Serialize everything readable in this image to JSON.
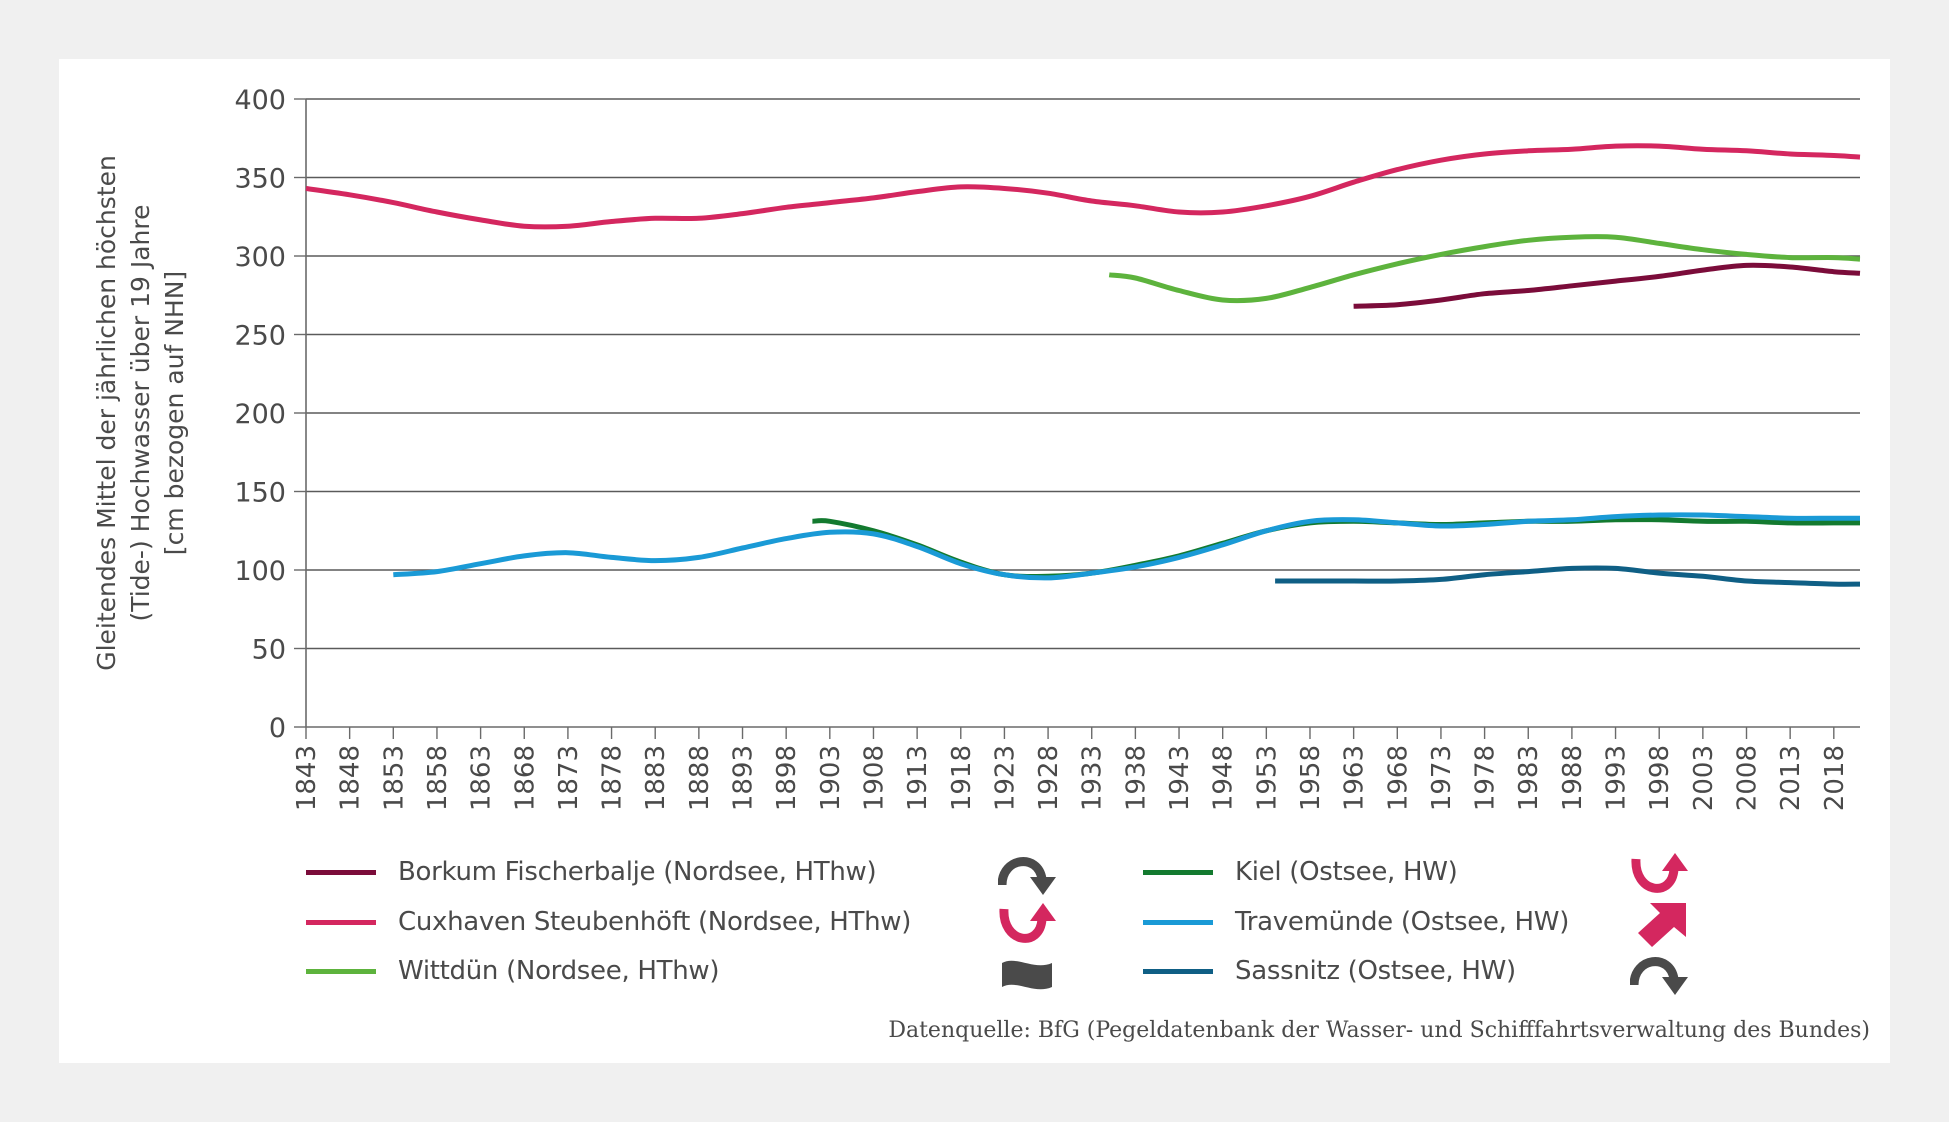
{
  "chart_data": {
    "type": "line",
    "title": "",
    "xlabel": "",
    "ylabel_lines": [
      "Gleitendes Mittel der jährlichen höchsten",
      "(Tide-) Hochwasser über 19 Jahre",
      "[cm bezogen auf NHN]"
    ],
    "xlim": [
      1843,
      2021
    ],
    "ylim": [
      0,
      400
    ],
    "yticks": [
      0,
      50,
      100,
      150,
      200,
      250,
      300,
      350,
      400
    ],
    "xticks": [
      1843,
      1848,
      1853,
      1858,
      1863,
      1868,
      1873,
      1878,
      1883,
      1888,
      1893,
      1898,
      1903,
      1908,
      1913,
      1918,
      1923,
      1928,
      1933,
      1938,
      1943,
      1948,
      1953,
      1958,
      1963,
      1968,
      1973,
      1978,
      1983,
      1988,
      1993,
      1998,
      2003,
      2008,
      2013,
      2018
    ],
    "grid": "horizontal",
    "legend_position": "bottom",
    "series": [
      {
        "name": "Borkum Fischerbalje (Nordsee, HThw)",
        "color": "#7b0c3a",
        "trend_icon": "curve-down-arrow-icon",
        "trend_color": "#4a4a4a",
        "x": [
          1963,
          1968,
          1973,
          1978,
          1983,
          1988,
          1993,
          1998,
          2003,
          2008,
          2013,
          2018,
          2021
        ],
        "y": [
          268,
          269,
          272,
          276,
          278,
          281,
          284,
          287,
          291,
          294,
          293,
          290,
          289
        ]
      },
      {
        "name": "Cuxhaven Steubenhöft (Nordsee, HThw)",
        "color": "#d4275f",
        "trend_icon": "curve-up-arrow-icon",
        "trend_color": "#d4275f",
        "x": [
          1843,
          1848,
          1853,
          1858,
          1863,
          1868,
          1873,
          1878,
          1883,
          1888,
          1893,
          1898,
          1903,
          1908,
          1913,
          1918,
          1923,
          1928,
          1933,
          1938,
          1943,
          1948,
          1953,
          1958,
          1963,
          1968,
          1973,
          1978,
          1983,
          1988,
          1993,
          1998,
          2003,
          2008,
          2013,
          2018,
          2021
        ],
        "y": [
          343,
          339,
          334,
          328,
          323,
          319,
          319,
          322,
          324,
          324,
          327,
          331,
          334,
          337,
          341,
          344,
          343,
          340,
          335,
          332,
          328,
          328,
          332,
          338,
          347,
          355,
          361,
          365,
          367,
          368,
          370,
          370,
          368,
          367,
          365,
          364,
          363
        ]
      },
      {
        "name": "Wittdün (Nordsee, HThw)",
        "color": "#5db33d",
        "trend_icon": "wave-no-trend-icon",
        "trend_color": "#4a4a4a",
        "x": [
          1935,
          1938,
          1943,
          1948,
          1953,
          1958,
          1963,
          1968,
          1973,
          1978,
          1983,
          1988,
          1993,
          1998,
          2003,
          2008,
          2013,
          2018,
          2021
        ],
        "y": [
          288,
          286,
          278,
          272,
          273,
          280,
          288,
          295,
          301,
          306,
          310,
          312,
          312,
          308,
          304,
          301,
          299,
          299,
          298
        ]
      },
      {
        "name": "Kiel (Ostsee, HW)",
        "color": "#137a2f",
        "trend_icon": "curve-up-arrow-icon",
        "trend_color": "#d4275f",
        "x": [
          1901,
          1903,
          1908,
          1913,
          1918,
          1923,
          1928,
          1933,
          1938,
          1943,
          1948,
          1953,
          1958,
          1963,
          1968,
          1973,
          1978,
          1983,
          1988,
          1993,
          1998,
          2003,
          2008,
          2013,
          2018,
          2021
        ],
        "y": [
          131,
          131,
          125,
          116,
          105,
          97,
          96,
          98,
          103,
          109,
          117,
          125,
          130,
          131,
          130,
          129,
          130,
          131,
          131,
          132,
          132,
          131,
          131,
          130,
          130,
          130
        ]
      },
      {
        "name": "Travemünde (Ostsee, HW)",
        "color": "#1a9ad6",
        "trend_icon": "diagonal-up-arrow-icon",
        "trend_color": "#d4275f",
        "x": [
          1853,
          1858,
          1863,
          1868,
          1873,
          1878,
          1883,
          1888,
          1893,
          1898,
          1903,
          1908,
          1913,
          1918,
          1923,
          1928,
          1933,
          1938,
          1943,
          1948,
          1953,
          1958,
          1963,
          1968,
          1973,
          1978,
          1983,
          1988,
          1993,
          1998,
          2003,
          2008,
          2013,
          2018,
          2021
        ],
        "y": [
          97,
          99,
          104,
          109,
          111,
          108,
          106,
          108,
          114,
          120,
          124,
          123,
          115,
          104,
          97,
          95,
          98,
          102,
          108,
          116,
          125,
          131,
          132,
          130,
          128,
          129,
          131,
          132,
          134,
          135,
          135,
          134,
          133,
          133,
          133
        ]
      },
      {
        "name": "Sassnitz (Ostsee, HW)",
        "color": "#0f5f85",
        "trend_icon": "curve-down-arrow-icon",
        "trend_color": "#4a4a4a",
        "x": [
          1954,
          1958,
          1963,
          1968,
          1973,
          1978,
          1983,
          1988,
          1993,
          1998,
          2003,
          2008,
          2013,
          2018,
          2021
        ],
        "y": [
          93,
          93,
          93,
          93,
          94,
          97,
          99,
          101,
          101,
          98,
          96,
          93,
          92,
          91,
          91
        ]
      }
    ]
  },
  "source": "Datenquelle: BfG (Pegeldatenbank der Wasser- und Schifffahrtsverwaltung des Bundes)"
}
